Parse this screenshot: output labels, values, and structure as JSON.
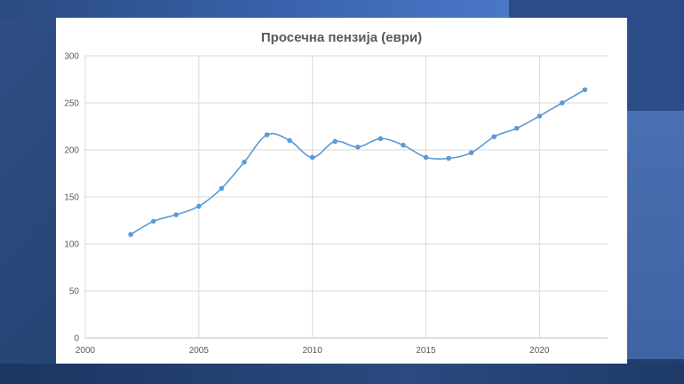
{
  "chart_data": {
    "type": "line",
    "title": "Просечна пензија (еври)",
    "xlabel": "",
    "ylabel": "",
    "xlim": [
      2000,
      2023
    ],
    "ylim": [
      0,
      300
    ],
    "x_ticks": [
      2000,
      2005,
      2010,
      2015,
      2020
    ],
    "y_ticks": [
      0,
      50,
      100,
      150,
      200,
      250,
      300
    ],
    "grid": true,
    "legend": "none",
    "series": [
      {
        "color": "#5b9bd5",
        "x": [
          2002,
          2003,
          2004,
          2005,
          2006,
          2007,
          2008,
          2009,
          2010,
          2011,
          2012,
          2013,
          2014,
          2015,
          2016,
          2017,
          2018,
          2019,
          2020,
          2021,
          2022
        ],
        "y": [
          110,
          124,
          131,
          140,
          159,
          187,
          216,
          210,
          192,
          209,
          203,
          212,
          205,
          192,
          191,
          197,
          214,
          223,
          236,
          250,
          264
        ]
      }
    ]
  }
}
